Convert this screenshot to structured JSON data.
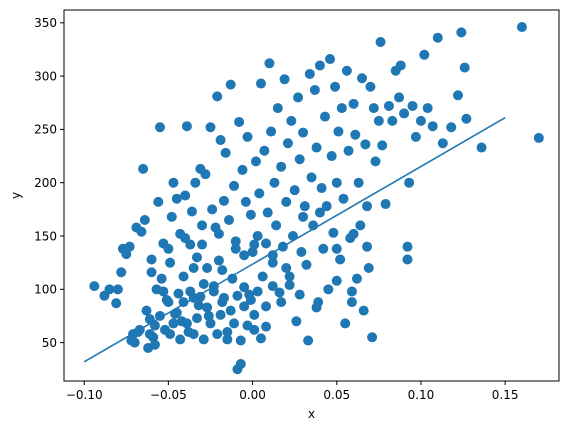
{
  "chart_data": {
    "type": "scatter",
    "title": "",
    "xlabel": "x",
    "ylabel": "y",
    "xlim": [
      -0.112,
      0.182
    ],
    "ylim": [
      14,
      362
    ],
    "xticks": [
      -0.1,
      -0.05,
      0.0,
      0.05,
      0.1,
      0.15
    ],
    "xtick_labels": [
      "−0.10",
      "−0.05",
      "0.00",
      "0.05",
      "0.10",
      "0.15"
    ],
    "yticks": [
      50,
      100,
      150,
      200,
      250,
      300,
      350
    ],
    "ytick_labels": [
      "50",
      "100",
      "150",
      "200",
      "250",
      "300",
      "350"
    ],
    "grid": false,
    "legend": "none",
    "colors": {
      "points": "#1f77b4",
      "fit_line": "#1f77b4"
    },
    "fit_line": {
      "x": [
        -0.1,
        0.15
      ],
      "y": [
        32,
        261
      ]
    },
    "series": [
      {
        "points": [
          [
            -0.094,
            103
          ],
          [
            -0.088,
            94
          ],
          [
            -0.085,
            100
          ],
          [
            -0.081,
            87
          ],
          [
            -0.08,
            100
          ],
          [
            -0.078,
            116
          ],
          [
            -0.077,
            138
          ],
          [
            -0.075,
            133
          ],
          [
            -0.073,
            140
          ],
          [
            -0.071,
            58
          ],
          [
            -0.07,
            50
          ],
          [
            -0.069,
            158
          ],
          [
            -0.068,
            60
          ],
          [
            -0.066,
            154
          ],
          [
            -0.065,
            213
          ],
          [
            -0.064,
            165
          ],
          [
            -0.063,
            80
          ],
          [
            -0.062,
            45
          ],
          [
            -0.061,
            72
          ],
          [
            -0.06,
            116
          ],
          [
            -0.059,
            55
          ],
          [
            -0.058,
            66
          ],
          [
            -0.057,
            100
          ],
          [
            -0.056,
            182
          ],
          [
            -0.055,
            252
          ],
          [
            -0.054,
            110
          ],
          [
            -0.053,
            143
          ],
          [
            -0.052,
            62
          ],
          [
            -0.051,
            90
          ],
          [
            -0.05,
            88
          ],
          [
            -0.049,
            125
          ],
          [
            -0.048,
            168
          ],
          [
            -0.047,
            200
          ],
          [
            -0.046,
            77
          ],
          [
            -0.045,
            185
          ],
          [
            -0.044,
            96
          ],
          [
            -0.043,
            152
          ],
          [
            -0.042,
            70
          ],
          [
            -0.041,
            112
          ],
          [
            -0.04,
            188
          ],
          [
            -0.039,
            253
          ],
          [
            -0.038,
            60
          ],
          [
            -0.037,
            142
          ],
          [
            -0.036,
            173
          ],
          [
            -0.035,
            92
          ],
          [
            -0.034,
            200
          ],
          [
            -0.033,
            130
          ],
          [
            -0.032,
            85
          ],
          [
            -0.031,
            213
          ],
          [
            -0.03,
            160
          ],
          [
            -0.029,
            105
          ],
          [
            -0.028,
            208
          ],
          [
            -0.027,
            120
          ],
          [
            -0.026,
            75
          ],
          [
            -0.025,
            252
          ],
          [
            -0.024,
            175
          ],
          [
            -0.023,
            103
          ],
          [
            -0.022,
            158
          ],
          [
            -0.021,
            281
          ],
          [
            -0.02,
            127
          ],
          [
            -0.019,
            240
          ],
          [
            -0.018,
            88
          ],
          [
            -0.017,
            183
          ],
          [
            -0.016,
            228
          ],
          [
            -0.015,
            60
          ],
          [
            -0.014,
            165
          ],
          [
            -0.013,
            292
          ],
          [
            -0.012,
            110
          ],
          [
            -0.011,
            197
          ],
          [
            -0.01,
            145
          ],
          [
            -0.009,
            25
          ],
          [
            -0.008,
            257
          ],
          [
            -0.007,
            30
          ],
          [
            -0.006,
            212
          ],
          [
            -0.005,
            132
          ],
          [
            -0.004,
            182
          ],
          [
            -0.003,
            243
          ],
          [
            -0.002,
            95
          ],
          [
            -0.001,
            170
          ],
          [
            0.0,
            135
          ],
          [
            0.001,
            62
          ],
          [
            0.002,
            220
          ],
          [
            0.003,
            150
          ],
          [
            0.004,
            190
          ],
          [
            0.005,
            293
          ],
          [
            0.006,
            112
          ],
          [
            0.007,
            230
          ],
          [
            0.008,
            65
          ],
          [
            0.009,
            172
          ],
          [
            0.01,
            312
          ],
          [
            0.011,
            248
          ],
          [
            0.012,
            125
          ],
          [
            0.013,
            200
          ],
          [
            0.014,
            160
          ],
          [
            0.015,
            270
          ],
          [
            0.016,
            97
          ],
          [
            0.017,
            215
          ],
          [
            0.018,
            140
          ],
          [
            0.019,
            297
          ],
          [
            0.02,
            182
          ],
          [
            0.021,
            237
          ],
          [
            0.022,
            112
          ],
          [
            0.023,
            258
          ],
          [
            0.024,
            150
          ],
          [
            0.025,
            193
          ],
          [
            0.026,
            70
          ],
          [
            0.027,
            280
          ],
          [
            0.028,
            222
          ],
          [
            0.029,
            135
          ],
          [
            0.03,
            247
          ],
          [
            0.031,
            178
          ],
          [
            0.032,
            123
          ],
          [
            0.033,
            52
          ],
          [
            0.034,
            302
          ],
          [
            0.035,
            205
          ],
          [
            0.036,
            160
          ],
          [
            0.037,
            287
          ],
          [
            0.038,
            233
          ],
          [
            0.039,
            88
          ],
          [
            0.04,
            310
          ],
          [
            0.041,
            195
          ],
          [
            0.042,
            138
          ],
          [
            0.043,
            262
          ],
          [
            0.044,
            178
          ],
          [
            0.045,
            100
          ],
          [
            0.046,
            316
          ],
          [
            0.047,
            225
          ],
          [
            0.048,
            153
          ],
          [
            0.049,
            290
          ],
          [
            0.05,
            200
          ],
          [
            0.051,
            248
          ],
          [
            0.052,
            128
          ],
          [
            0.053,
            270
          ],
          [
            0.054,
            185
          ],
          [
            0.055,
            68
          ],
          [
            0.056,
            305
          ],
          [
            0.057,
            230
          ],
          [
            0.058,
            148
          ],
          [
            0.059,
            88
          ],
          [
            0.06,
            274
          ],
          [
            0.061,
            245
          ],
          [
            0.062,
            110
          ],
          [
            0.063,
            200
          ],
          [
            0.064,
            160
          ],
          [
            0.065,
            298
          ],
          [
            0.066,
            80
          ],
          [
            0.067,
            236
          ],
          [
            0.068,
            178
          ],
          [
            0.069,
            120
          ],
          [
            0.07,
            290
          ],
          [
            0.071,
            55
          ],
          [
            0.072,
            270
          ],
          [
            0.073,
            220
          ],
          [
            0.075,
            258
          ],
          [
            0.076,
            332
          ],
          [
            0.077,
            235
          ],
          [
            0.079,
            180
          ],
          [
            0.081,
            272
          ],
          [
            0.083,
            258
          ],
          [
            0.085,
            305
          ],
          [
            0.087,
            280
          ],
          [
            0.088,
            310
          ],
          [
            0.09,
            265
          ],
          [
            0.092,
            140
          ],
          [
            0.092,
            128
          ],
          [
            0.093,
            200
          ],
          [
            0.095,
            272
          ],
          [
            0.097,
            243
          ],
          [
            0.1,
            258
          ],
          [
            0.102,
            320
          ],
          [
            0.104,
            270
          ],
          [
            0.107,
            253
          ],
          [
            0.11,
            336
          ],
          [
            0.113,
            237
          ],
          [
            0.118,
            252
          ],
          [
            0.122,
            282
          ],
          [
            0.124,
            341
          ],
          [
            0.126,
            308
          ],
          [
            0.127,
            260
          ],
          [
            0.136,
            233
          ],
          [
            0.16,
            346
          ],
          [
            0.17,
            242
          ],
          [
            -0.072,
            52
          ],
          [
            -0.067,
            62
          ],
          [
            -0.061,
            58
          ],
          [
            -0.058,
            48
          ],
          [
            -0.055,
            75
          ],
          [
            -0.053,
            98
          ],
          [
            -0.049,
            58
          ],
          [
            -0.047,
            68
          ],
          [
            -0.045,
            78
          ],
          [
            -0.043,
            53
          ],
          [
            -0.041,
            88
          ],
          [
            -0.039,
            68
          ],
          [
            -0.037,
            98
          ],
          [
            -0.035,
            58
          ],
          [
            -0.033,
            73
          ],
          [
            -0.031,
            93
          ],
          [
            -0.029,
            53
          ],
          [
            -0.027,
            83
          ],
          [
            -0.025,
            68
          ],
          [
            -0.023,
            98
          ],
          [
            -0.021,
            58
          ],
          [
            -0.019,
            76
          ],
          [
            -0.017,
            92
          ],
          [
            -0.015,
            53
          ],
          [
            -0.013,
            80
          ],
          [
            -0.011,
            68
          ],
          [
            -0.009,
            94
          ],
          [
            -0.007,
            52
          ],
          [
            -0.005,
            84
          ],
          [
            -0.003,
            66
          ],
          [
            -0.001,
            90
          ],
          [
            0.001,
            76
          ],
          [
            0.003,
            98
          ],
          [
            0.005,
            54
          ],
          [
            0.008,
            84
          ],
          [
            0.012,
            103
          ],
          [
            0.017,
            88
          ],
          [
            0.022,
            104
          ],
          [
            0.028,
            95
          ],
          [
            0.038,
            83
          ],
          [
            0.05,
            108
          ],
          [
            0.059,
            98
          ],
          [
            -0.06,
            128
          ],
          [
            -0.05,
            138
          ],
          [
            -0.04,
            148
          ],
          [
            -0.03,
            142
          ],
          [
            -0.02,
            152
          ],
          [
            -0.01,
            138
          ],
          [
            0.001,
            142
          ],
          [
            0.012,
            132
          ],
          [
            0.02,
            120
          ],
          [
            0.03,
            168
          ],
          [
            0.04,
            172
          ],
          [
            0.05,
            138
          ],
          [
            0.06,
            152
          ],
          [
            0.068,
            140
          ],
          [
            -0.035,
            120
          ],
          [
            -0.018,
            118
          ],
          [
            -0.005,
            102
          ],
          [
            0.008,
            143
          ]
        ]
      }
    ]
  }
}
